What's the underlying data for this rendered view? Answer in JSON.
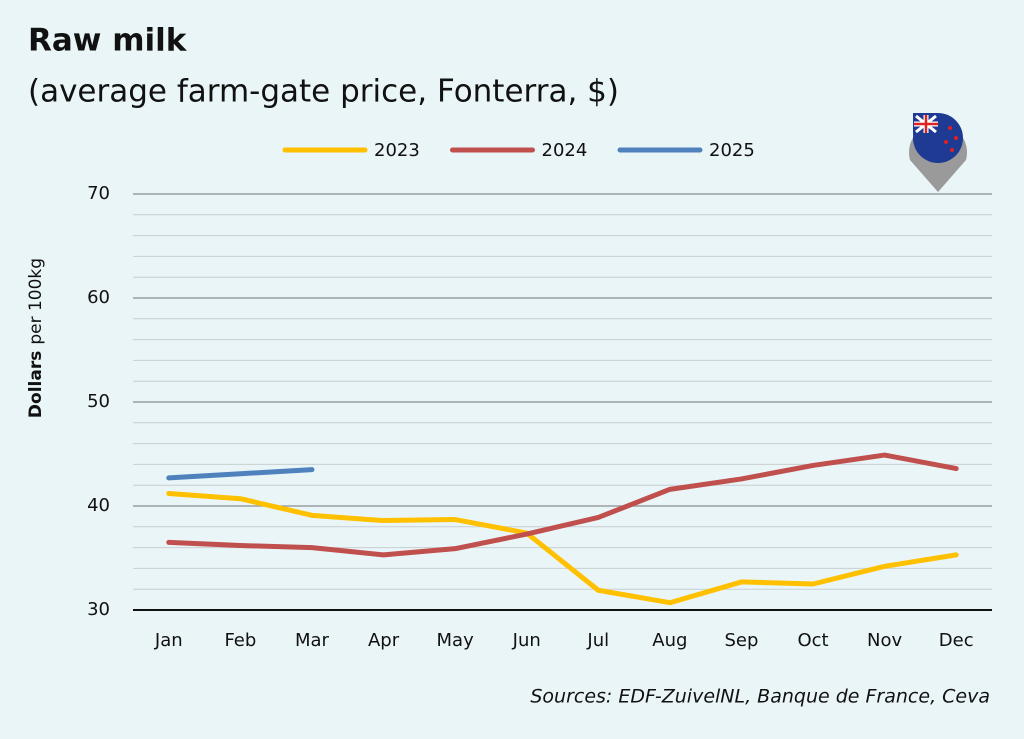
{
  "chart_data": {
    "type": "line",
    "title": "Raw milk",
    "subtitle": "(average farm-gate price, Fonterra, $)",
    "ylabel": [
      "Dollars",
      "per 100kg"
    ],
    "source": "Sources: EDF-ZuivelNL, Banque de France, Ceva",
    "categories": [
      "Jan",
      "Feb",
      "Mar",
      "Apr",
      "May",
      "Jun",
      "Jul",
      "Aug",
      "Sep",
      "Oct",
      "Nov",
      "Dec"
    ],
    "series": [
      {
        "name": "2023",
        "color": "#ffc000",
        "values": [
          41.2,
          40.7,
          39.1,
          38.6,
          38.7,
          37.4,
          31.9,
          30.7,
          32.7,
          32.5,
          34.2,
          35.3
        ]
      },
      {
        "name": "2024",
        "color": "#c0504d",
        "values": [
          36.5,
          36.2,
          36.0,
          35.3,
          35.9,
          37.3,
          38.9,
          41.6,
          42.6,
          43.9,
          44.9,
          43.6
        ]
      },
      {
        "name": "2025",
        "color": "#4f81bd",
        "values": [
          42.7,
          43.1,
          43.5,
          null,
          null,
          null,
          null,
          null,
          null,
          null,
          null,
          null
        ]
      }
    ],
    "ylim": [
      30,
      70
    ],
    "yticks": [
      30,
      40,
      50,
      60,
      70
    ],
    "yminorticks": [
      32,
      34,
      36,
      38,
      42,
      44,
      46,
      48,
      52,
      54,
      56,
      58,
      62,
      64,
      66,
      68
    ],
    "grid": true
  }
}
